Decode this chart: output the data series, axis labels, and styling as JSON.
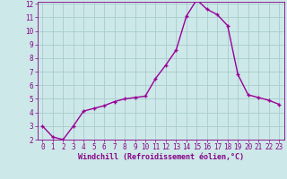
{
  "x": [
    0,
    1,
    2,
    3,
    4,
    5,
    6,
    7,
    8,
    9,
    10,
    11,
    12,
    13,
    14,
    15,
    16,
    17,
    18,
    19,
    20,
    21,
    22,
    23
  ],
  "y": [
    3.0,
    2.2,
    2.0,
    3.0,
    4.1,
    4.3,
    4.5,
    4.8,
    5.0,
    5.1,
    5.2,
    6.5,
    7.5,
    8.6,
    11.1,
    12.3,
    11.6,
    11.2,
    10.4,
    6.8,
    5.3,
    5.1,
    4.9,
    4.6
  ],
  "line_color": "#990099",
  "marker": "+",
  "marker_size": 3.5,
  "marker_edge_width": 1.0,
  "bg_color": "#cce8e8",
  "grid_color": "#aacccc",
  "xlabel": "Windchill (Refroidissement éolien,°C)",
  "xlabel_color": "#880088",
  "tick_color": "#880088",
  "spine_color": "#880088",
  "ylim": [
    2,
    12
  ],
  "xlim": [
    -0.5,
    23.5
  ],
  "yticks": [
    2,
    3,
    4,
    5,
    6,
    7,
    8,
    9,
    10,
    11,
    12
  ],
  "xticks": [
    0,
    1,
    2,
    3,
    4,
    5,
    6,
    7,
    8,
    9,
    10,
    11,
    12,
    13,
    14,
    15,
    16,
    17,
    18,
    19,
    20,
    21,
    22,
    23
  ],
  "line_width": 1.0,
  "tick_fontsize": 5.5,
  "xlabel_fontsize": 6.0,
  "xlabel_fontweight": "bold"
}
